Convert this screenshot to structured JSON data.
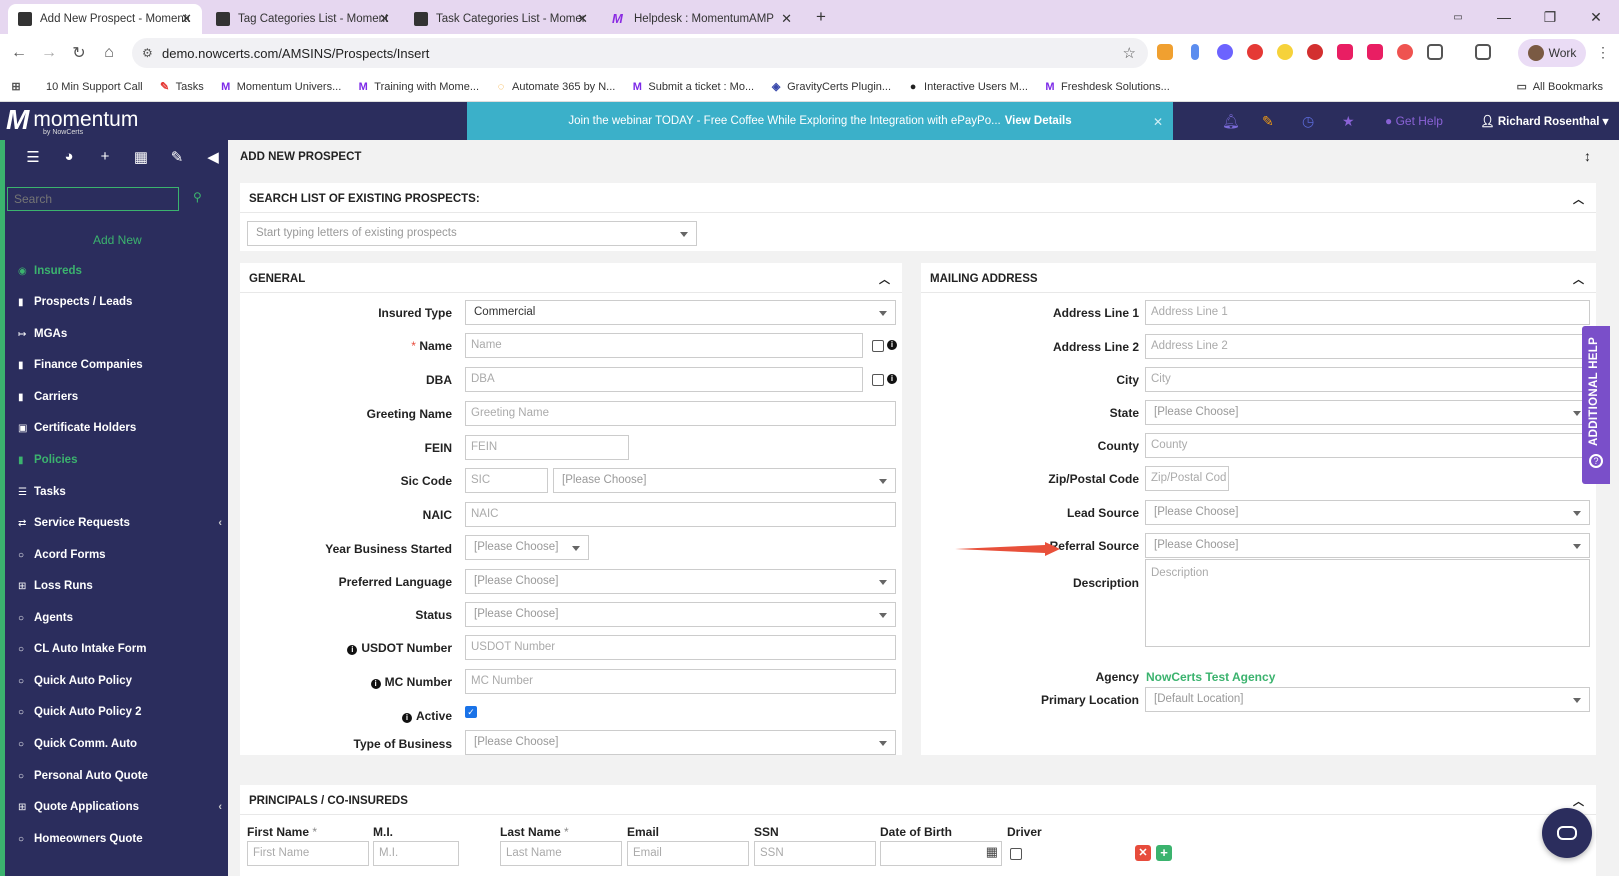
{
  "browser": {
    "tabs": [
      {
        "title": "Add New Prospect - Momentum",
        "icon": "momentum-favicon",
        "active": true
      },
      {
        "title": "Tag Categories List - Momentum",
        "icon": "momentum-favicon",
        "active": false
      },
      {
        "title": "Task Categories List - Momentum",
        "icon": "momentum-favicon",
        "active": false
      },
      {
        "title": "Helpdesk : MomentumAMP",
        "icon": "helpdesk-favicon",
        "active": false
      }
    ],
    "new_tab": "+",
    "url": "demo.nowcerts.com/AMSINS/Prospects/Insert",
    "profile": "Work",
    "bookmarks": [
      {
        "label": "10 Min Support Call",
        "icon": "bookmark-icon"
      },
      {
        "label": "Tasks",
        "icon": "tasks-icon"
      },
      {
        "label": "Momentum Univers...",
        "icon": "momentum-icon"
      },
      {
        "label": "Training with Mome...",
        "icon": "momentum-icon"
      },
      {
        "label": "Automate 365 by N...",
        "icon": "automate-icon"
      },
      {
        "label": "Submit a ticket : Mo...",
        "icon": "momentum-icon"
      },
      {
        "label": "GravityCerts Plugin...",
        "icon": "gravitycerts-icon"
      },
      {
        "label": "Interactive Users M...",
        "icon": "interactive-icon"
      },
      {
        "label": "Freshdesk Solutions...",
        "icon": "momentum-icon"
      }
    ],
    "all_bookmarks": "All Bookmarks"
  },
  "app": {
    "logo_word": "momentum",
    "logo_by": "by NowCerts",
    "banner_text": "Join the webinar TODAY - Free Coffee While Exploring the Integration with ePayPo...",
    "banner_link": "View Details",
    "get_help": "Get Help",
    "user": "Richard Rosenthal"
  },
  "sidebar": {
    "search_placeholder": "Search",
    "add_new": "Add New",
    "items": [
      {
        "label": "Insureds",
        "icon": "eye-icon",
        "active": true
      },
      {
        "label": "Prospects / Leads",
        "icon": "book-icon"
      },
      {
        "label": "MGAs",
        "icon": "signin-icon"
      },
      {
        "label": "Finance Companies",
        "icon": "book-icon"
      },
      {
        "label": "Carriers",
        "icon": "book-icon"
      },
      {
        "label": "Certificate Holders",
        "icon": "lock-icon"
      },
      {
        "label": "Policies",
        "icon": "book-icon",
        "active": true
      },
      {
        "label": "Tasks",
        "icon": "tasks-icon"
      },
      {
        "label": "Service Requests",
        "icon": "exchange-icon",
        "chevron": true
      },
      {
        "label": "Acord Forms",
        "icon": "circle-icon"
      },
      {
        "label": "Loss Runs",
        "icon": "grid-icon"
      },
      {
        "label": "Agents",
        "icon": "circle-icon"
      },
      {
        "label": "CL Auto Intake Form",
        "icon": "circle-icon"
      },
      {
        "label": "Quick Auto Policy",
        "icon": "circle-icon"
      },
      {
        "label": "Quick Auto Policy 2",
        "icon": "circle-icon"
      },
      {
        "label": "Quick Comm. Auto",
        "icon": "circle-icon"
      },
      {
        "label": "Personal Auto Quote",
        "icon": "circle-icon"
      },
      {
        "label": "Quote Applications",
        "icon": "grid-icon",
        "chevron": true
      },
      {
        "label": "Homeowners Quote",
        "icon": "circle-icon"
      }
    ]
  },
  "page": {
    "title": "ADD NEW PROSPECT",
    "search_section": {
      "title": "SEARCH LIST OF EXISTING PROSPECTS:",
      "placeholder": "Start typing letters of existing prospects"
    },
    "general": {
      "title": "GENERAL",
      "insured_type_label": "Insured Type",
      "insured_type_value": "Commercial",
      "name_label": "Name",
      "name_placeholder": "Name",
      "dba_label": "DBA",
      "dba_placeholder": "DBA",
      "greeting_label": "Greeting Name",
      "greeting_placeholder": "Greeting Name",
      "fein_label": "FEIN",
      "fein_placeholder": "FEIN",
      "sic_label": "Sic Code",
      "sic_placeholder": "SIC",
      "sic_select": "[Please Choose]",
      "naic_label": "NAIC",
      "naic_placeholder": "NAIC",
      "year_label": "Year Business Started",
      "year_value": "[Please Choose]",
      "language_label": "Preferred Language",
      "language_value": "[Please Choose]",
      "status_label": "Status",
      "status_value": "[Please Choose]",
      "usdot_label": "USDOT Number",
      "usdot_placeholder": "USDOT Number",
      "mc_label": "MC Number",
      "mc_placeholder": "MC Number",
      "active_label": "Active",
      "active_checked": true,
      "type_label": "Type of Business",
      "type_value": "[Please Choose]"
    },
    "mailing": {
      "title": "MAILING ADDRESS",
      "addr1_label": "Address Line 1",
      "addr1_placeholder": "Address Line 1",
      "addr2_label": "Address Line 2",
      "addr2_placeholder": "Address Line 2",
      "city_label": "City",
      "city_placeholder": "City",
      "state_label": "State",
      "state_value": "[Please Choose]",
      "county_label": "County",
      "county_placeholder": "County",
      "zip_label": "Zip/Postal Code",
      "zip_placeholder": "Zip/Postal Cod",
      "lead_label": "Lead Source",
      "lead_value": "[Please Choose]",
      "referral_label": "Referral Source",
      "referral_value": "[Please Choose]",
      "desc_label": "Description",
      "desc_placeholder": "Description",
      "agency_label": "Agency",
      "agency_value": "NowCerts Test Agency",
      "location_label": "Primary Location",
      "location_value": "[Default Location]"
    },
    "principals": {
      "title": "PRINCIPALS / CO-INSUREDS",
      "columns": [
        "First Name",
        "M.I.",
        "Last Name",
        "Email",
        "SSN",
        "Date of Birth",
        "Driver"
      ],
      "placeholders": [
        "First Name",
        "M.I.",
        "Last Name",
        "Email",
        "SSN"
      ]
    },
    "additional_help": "ADDITIONAL HELP",
    "colors": {
      "accent": "#3bb36e",
      "navy": "#2b2d5d",
      "banner": "#3bb0c9",
      "arrow": "#e8503a",
      "purple": "#7a4fc9"
    }
  }
}
